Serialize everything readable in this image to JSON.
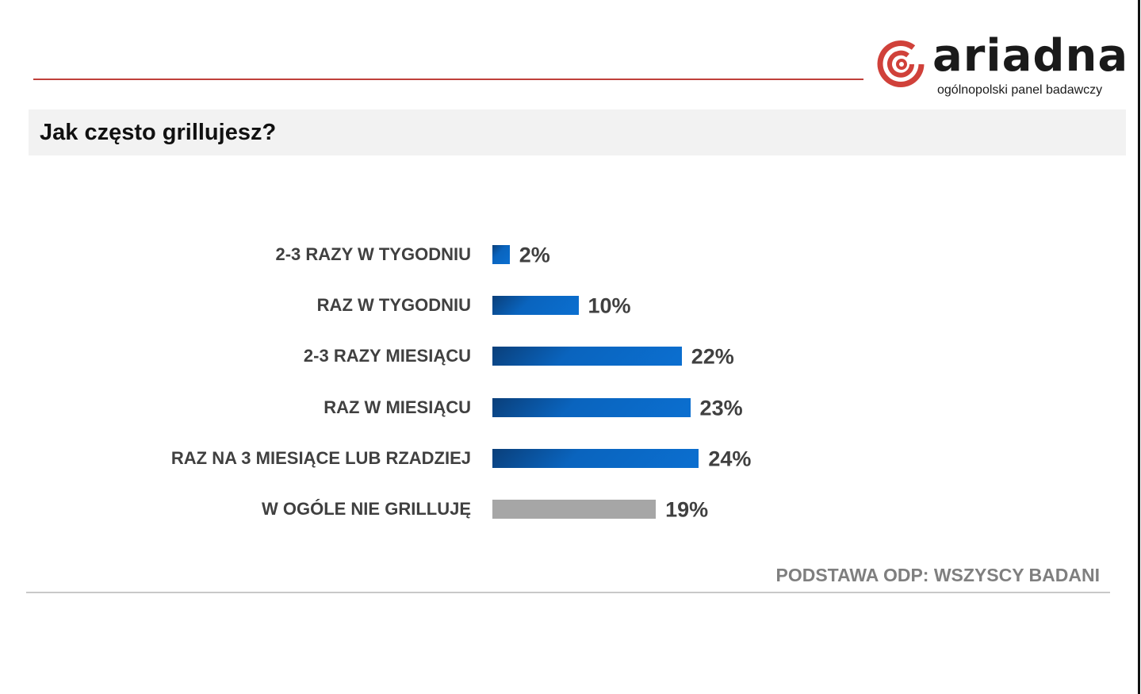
{
  "logo": {
    "word": "ariadna",
    "subtitle": "ogólnopolski panel badawczy"
  },
  "header": {
    "title": "Jak często grillujesz?"
  },
  "footnote": "PODSTAWA ODP: WSZYSCY BADANI",
  "colors": {
    "bar_blue": "#0a64be",
    "bar_gray": "#a6a6a6",
    "accent_red": "#c0403a"
  },
  "chart_data": {
    "type": "bar",
    "orientation": "horizontal",
    "categories": [
      "2-3 RAZY W TYGODNIU",
      "RAZ W TYGODNIU",
      "2-3 RAZY MIESIĄCU",
      "RAZ W MIESIĄCU",
      "RAZ NA 3 MIESIĄCE LUB RZADZIEJ",
      "W OGÓLE NIE GRILLUJĘ"
    ],
    "values": [
      2,
      10,
      22,
      23,
      24,
      19
    ],
    "data_labels": [
      "2%",
      "10%",
      "22%",
      "23%",
      "24%",
      "19%"
    ],
    "bar_colors": [
      "blue",
      "blue",
      "blue",
      "blue",
      "blue",
      "gray"
    ],
    "grid": false,
    "legend": "none"
  }
}
